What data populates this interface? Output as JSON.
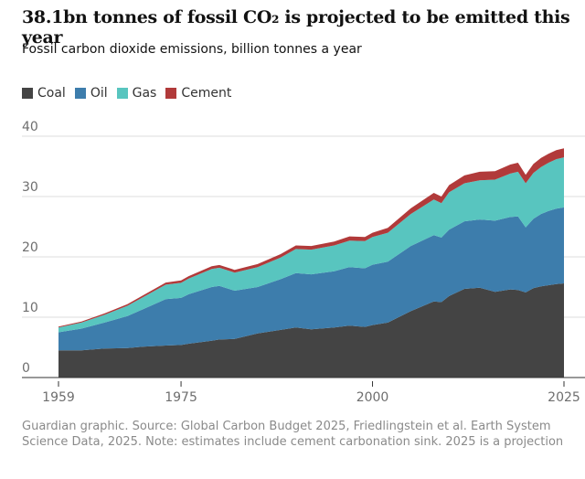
{
  "chart_data": {
    "type": "stacked-area",
    "title": "38.1bn tonnes of fossil CO₂ is projected to be emitted this year",
    "subtitle": "Fossil carbon dioxide emissions, billion tonnes a year",
    "note": "Guardian graphic. Source: Global Carbon Budget 2025, Friedlingstein et al. Earth System Science Data, 2025. Note: estimates include cement carbonation sink. 2025 is a projection",
    "x": [
      1959,
      1962,
      1965,
      1968,
      1970,
      1973,
      1975,
      1976,
      1979,
      1980,
      1982,
      1985,
      1988,
      1990,
      1992,
      1995,
      1997,
      1999,
      2000,
      2002,
      2005,
      2008,
      2009,
      2010,
      2012,
      2014,
      2016,
      2018,
      2019,
      2020,
      2021,
      2022,
      2023,
      2024,
      2025
    ],
    "xlim": [
      1959,
      2025
    ],
    "xticks": [
      1959,
      1975,
      2000,
      2025
    ],
    "ylim": [
      0,
      40
    ],
    "yticks": [
      0,
      10,
      20,
      30,
      40
    ],
    "grid": true,
    "series": [
      {
        "name": "Coal",
        "color": "#444444",
        "values": [
          4.5,
          4.5,
          4.8,
          4.9,
          5.1,
          5.3,
          5.4,
          5.6,
          6.1,
          6.3,
          6.4,
          7.3,
          7.9,
          8.3,
          8.0,
          8.3,
          8.6,
          8.4,
          8.7,
          9.1,
          11.0,
          12.6,
          12.5,
          13.5,
          14.7,
          14.9,
          14.2,
          14.6,
          14.5,
          14.1,
          14.8,
          15.1,
          15.3,
          15.5,
          15.6
        ]
      },
      {
        "name": "Oil",
        "color": "#3d7dac",
        "values": [
          3.0,
          3.6,
          4.3,
          5.3,
          6.2,
          7.7,
          7.8,
          8.2,
          8.9,
          8.9,
          8.0,
          7.7,
          8.4,
          9.0,
          9.1,
          9.3,
          9.7,
          9.7,
          10.0,
          10.1,
          10.8,
          11.0,
          10.7,
          11.0,
          11.2,
          11.3,
          11.8,
          12.0,
          12.2,
          10.8,
          11.5,
          12.0,
          12.3,
          12.5,
          12.6
        ]
      },
      {
        "name": "Gas",
        "color": "#58c5bf",
        "values": [
          0.8,
          1.0,
          1.3,
          1.7,
          2.0,
          2.4,
          2.5,
          2.6,
          3.0,
          3.0,
          3.0,
          3.3,
          3.6,
          4.0,
          4.1,
          4.3,
          4.4,
          4.5,
          4.6,
          4.8,
          5.3,
          5.9,
          5.7,
          6.2,
          6.3,
          6.5,
          6.8,
          7.2,
          7.4,
          7.3,
          7.6,
          7.8,
          8.0,
          8.2,
          8.3
        ]
      },
      {
        "name": "Cement",
        "color": "#b13a3a",
        "values": [
          0.15,
          0.18,
          0.22,
          0.26,
          0.3,
          0.35,
          0.4,
          0.4,
          0.45,
          0.45,
          0.45,
          0.5,
          0.55,
          0.6,
          0.6,
          0.65,
          0.7,
          0.7,
          0.7,
          0.8,
          0.95,
          1.1,
          1.1,
          1.2,
          1.3,
          1.4,
          1.4,
          1.5,
          1.5,
          1.4,
          1.5,
          1.5,
          1.5,
          1.5,
          1.5
        ]
      }
    ]
  }
}
